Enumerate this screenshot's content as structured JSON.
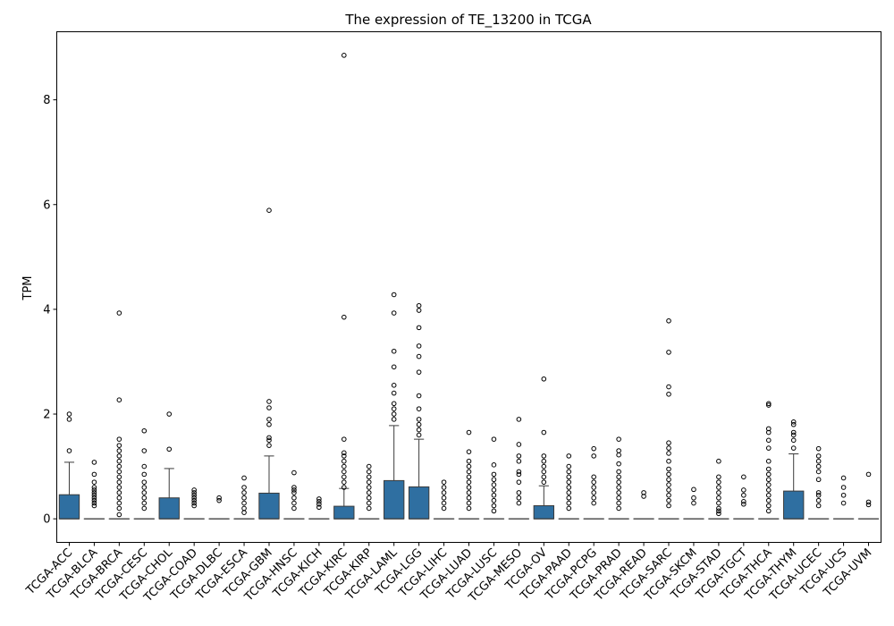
{
  "chart_data": {
    "type": "box",
    "title": "The expression of TE_13200 in TCGA",
    "xlabel": "",
    "ylabel": "TPM",
    "ylim": [
      -0.45,
      9.3
    ],
    "yticks": [
      0,
      2,
      4,
      6,
      8
    ],
    "grid": false,
    "box_color": "#2f6fa1",
    "categories": [
      "TCGA-ACC",
      "TCGA-BLCA",
      "TCGA-BRCA",
      "TCGA-CESC",
      "TCGA-CHOL",
      "TCGA-COAD",
      "TCGA-DLBC",
      "TCGA-ESCA",
      "TCGA-GBM",
      "TCGA-HNSC",
      "TCGA-KICH",
      "TCGA-KIRC",
      "TCGA-KIRP",
      "TCGA-LAML",
      "TCGA-LGG",
      "TCGA-LIHC",
      "TCGA-LUAD",
      "TCGA-LUSC",
      "TCGA-MESO",
      "TCGA-OV",
      "TCGA-PAAD",
      "TCGA-PCPG",
      "TCGA-PRAD",
      "TCGA-READ",
      "TCGA-SARC",
      "TCGA-SKCM",
      "TCGA-STAD",
      "TCGA-TGCT",
      "TCGA-THCA",
      "TCGA-THYM",
      "TCGA-UCEC",
      "TCGA-UCS",
      "TCGA-UVM"
    ],
    "boxes": [
      {
        "q1": 0,
        "median": 0,
        "q3": 0.46,
        "whisker_low": 0,
        "whisker_high": 1.08,
        "outliers": [
          1.3,
          1.9,
          2.0
        ]
      },
      {
        "q1": 0,
        "median": 0,
        "q3": 0,
        "whisker_low": 0,
        "whisker_high": 0,
        "outliers": [
          0.25,
          0.3,
          0.35,
          0.4,
          0.45,
          0.5,
          0.55,
          0.6,
          0.7,
          0.85,
          1.08
        ]
      },
      {
        "q1": 0,
        "median": 0,
        "q3": 0,
        "whisker_low": 0,
        "whisker_high": 0,
        "outliers": [
          0.08,
          0.2,
          0.3,
          0.4,
          0.5,
          0.6,
          0.7,
          0.8,
          0.9,
          1.0,
          1.1,
          1.2,
          1.3,
          1.4,
          1.52,
          2.27,
          3.93
        ]
      },
      {
        "q1": 0,
        "median": 0,
        "q3": 0,
        "whisker_low": 0,
        "whisker_high": 0,
        "outliers": [
          0.2,
          0.3,
          0.4,
          0.5,
          0.6,
          0.7,
          0.85,
          1.0,
          1.3,
          1.68
        ]
      },
      {
        "q1": 0,
        "median": 0,
        "q3": 0.4,
        "whisker_low": 0,
        "whisker_high": 0.96,
        "outliers": [
          1.33,
          2.0
        ]
      },
      {
        "q1": 0,
        "median": 0,
        "q3": 0,
        "whisker_low": 0,
        "whisker_high": 0,
        "outliers": [
          0.25,
          0.3,
          0.35,
          0.4,
          0.45,
          0.5,
          0.55
        ]
      },
      {
        "q1": 0,
        "median": 0,
        "q3": 0,
        "whisker_low": 0,
        "whisker_high": 0,
        "outliers": [
          0.35,
          0.4
        ]
      },
      {
        "q1": 0,
        "median": 0,
        "q3": 0,
        "whisker_low": 0,
        "whisker_high": 0,
        "outliers": [
          0.12,
          0.2,
          0.3,
          0.4,
          0.5,
          0.6,
          0.78
        ]
      },
      {
        "q1": 0,
        "median": 0,
        "q3": 0.49,
        "whisker_low": 0,
        "whisker_high": 1.2,
        "outliers": [
          1.4,
          1.5,
          1.55,
          1.8,
          1.9,
          2.12,
          2.24,
          5.89
        ]
      },
      {
        "q1": 0,
        "median": 0,
        "q3": 0,
        "whisker_low": 0,
        "whisker_high": 0,
        "outliers": [
          0.2,
          0.3,
          0.4,
          0.5,
          0.55,
          0.6,
          0.88
        ]
      },
      {
        "q1": 0,
        "median": 0,
        "q3": 0,
        "whisker_low": 0,
        "whisker_high": 0,
        "outliers": [
          0.22,
          0.28,
          0.33,
          0.38
        ]
      },
      {
        "q1": 0,
        "median": 0,
        "q3": 0.24,
        "whisker_low": 0,
        "whisker_high": 0.58,
        "outliers": [
          0.6,
          0.7,
          0.8,
          0.9,
          1.0,
          1.1,
          1.2,
          1.26,
          1.52,
          3.85,
          8.85
        ]
      },
      {
        "q1": 0,
        "median": 0,
        "q3": 0,
        "whisker_low": 0,
        "whisker_high": 0,
        "outliers": [
          0.2,
          0.3,
          0.4,
          0.5,
          0.6,
          0.7,
          0.8,
          0.9,
          1.0
        ]
      },
      {
        "q1": 0,
        "median": 0,
        "q3": 0.73,
        "whisker_low": 0,
        "whisker_high": 1.78,
        "outliers": [
          1.9,
          2.0,
          2.1,
          2.2,
          2.4,
          2.55,
          2.9,
          3.2,
          3.93,
          4.28
        ]
      },
      {
        "q1": 0,
        "median": 0,
        "q3": 0.61,
        "whisker_low": 0,
        "whisker_high": 1.52,
        "outliers": [
          1.6,
          1.7,
          1.8,
          1.9,
          2.1,
          2.35,
          2.8,
          3.1,
          3.3,
          3.65,
          3.98,
          4.07
        ]
      },
      {
        "q1": 0,
        "median": 0,
        "q3": 0,
        "whisker_low": 0,
        "whisker_high": 0,
        "outliers": [
          0.2,
          0.3,
          0.4,
          0.5,
          0.6,
          0.7
        ]
      },
      {
        "q1": 0,
        "median": 0,
        "q3": 0,
        "whisker_low": 0,
        "whisker_high": 0,
        "outliers": [
          0.2,
          0.3,
          0.4,
          0.5,
          0.6,
          0.7,
          0.8,
          0.9,
          1.0,
          1.1,
          1.28,
          1.65
        ]
      },
      {
        "q1": 0,
        "median": 0,
        "q3": 0,
        "whisker_low": 0,
        "whisker_high": 0,
        "outliers": [
          0.15,
          0.25,
          0.35,
          0.45,
          0.55,
          0.65,
          0.75,
          0.85,
          1.03,
          1.52
        ]
      },
      {
        "q1": 0,
        "median": 0,
        "q3": 0,
        "whisker_low": 0,
        "whisker_high": 0,
        "outliers": [
          0.3,
          0.4,
          0.5,
          0.7,
          0.85,
          0.9,
          1.1,
          1.2,
          1.42,
          1.9
        ]
      },
      {
        "q1": 0,
        "median": 0,
        "q3": 0.25,
        "whisker_low": 0,
        "whisker_high": 0.63,
        "outliers": [
          0.7,
          0.8,
          0.9,
          1.0,
          1.1,
          1.2,
          1.65,
          2.67
        ]
      },
      {
        "q1": 0,
        "median": 0,
        "q3": 0,
        "whisker_low": 0,
        "whisker_high": 0,
        "outliers": [
          0.2,
          0.3,
          0.4,
          0.5,
          0.6,
          0.7,
          0.8,
          0.9,
          1.0,
          1.2
        ]
      },
      {
        "q1": 0,
        "median": 0,
        "q3": 0,
        "whisker_low": 0,
        "whisker_high": 0,
        "outliers": [
          0.3,
          0.4,
          0.5,
          0.6,
          0.7,
          0.8,
          1.2,
          1.34
        ]
      },
      {
        "q1": 0,
        "median": 0,
        "q3": 0,
        "whisker_low": 0,
        "whisker_high": 0,
        "outliers": [
          0.2,
          0.3,
          0.4,
          0.5,
          0.6,
          0.7,
          0.8,
          0.9,
          1.05,
          1.22,
          1.3,
          1.52
        ]
      },
      {
        "q1": 0,
        "median": 0,
        "q3": 0,
        "whisker_low": 0,
        "whisker_high": 0,
        "outliers": [
          0.43,
          0.5
        ]
      },
      {
        "q1": 0,
        "median": 0,
        "q3": 0,
        "whisker_low": 0,
        "whisker_high": 0,
        "outliers": [
          0.25,
          0.35,
          0.45,
          0.55,
          0.65,
          0.75,
          0.85,
          0.95,
          1.1,
          1.25,
          1.35,
          1.45,
          2.38,
          2.52,
          3.18,
          3.78
        ]
      },
      {
        "q1": 0,
        "median": 0,
        "q3": 0,
        "whisker_low": 0,
        "whisker_high": 0,
        "outliers": [
          0.3,
          0.4,
          0.56
        ]
      },
      {
        "q1": 0,
        "median": 0,
        "q3": 0,
        "whisker_low": 0,
        "whisker_high": 0,
        "outliers": [
          0.1,
          0.15,
          0.2,
          0.3,
          0.4,
          0.5,
          0.6,
          0.7,
          0.8,
          1.1
        ]
      },
      {
        "q1": 0,
        "median": 0,
        "q3": 0,
        "whisker_low": 0,
        "whisker_high": 0,
        "outliers": [
          0.28,
          0.33,
          0.45,
          0.55,
          0.8
        ]
      },
      {
        "q1": 0,
        "median": 0,
        "q3": 0,
        "whisker_low": 0,
        "whisker_high": 0,
        "outliers": [
          0.15,
          0.25,
          0.35,
          0.45,
          0.55,
          0.65,
          0.75,
          0.85,
          0.95,
          1.1,
          1.35,
          1.5,
          1.65,
          1.72,
          2.17,
          2.2
        ]
      },
      {
        "q1": 0,
        "median": 0,
        "q3": 0.53,
        "whisker_low": 0,
        "whisker_high": 1.24,
        "outliers": [
          1.35,
          1.5,
          1.6,
          1.65,
          1.8,
          1.85
        ]
      },
      {
        "q1": 0,
        "median": 0,
        "q3": 0,
        "whisker_low": 0,
        "whisker_high": 0,
        "outliers": [
          0.25,
          0.35,
          0.45,
          0.5,
          0.75,
          0.9,
          1.0,
          1.1,
          1.2,
          1.34
        ]
      },
      {
        "q1": 0,
        "median": 0,
        "q3": 0,
        "whisker_low": 0,
        "whisker_high": 0,
        "outliers": [
          0.3,
          0.45,
          0.6,
          0.78
        ]
      },
      {
        "q1": 0,
        "median": 0,
        "q3": 0,
        "whisker_low": 0,
        "whisker_high": 0,
        "outliers": [
          0.27,
          0.32,
          0.85
        ]
      }
    ]
  }
}
